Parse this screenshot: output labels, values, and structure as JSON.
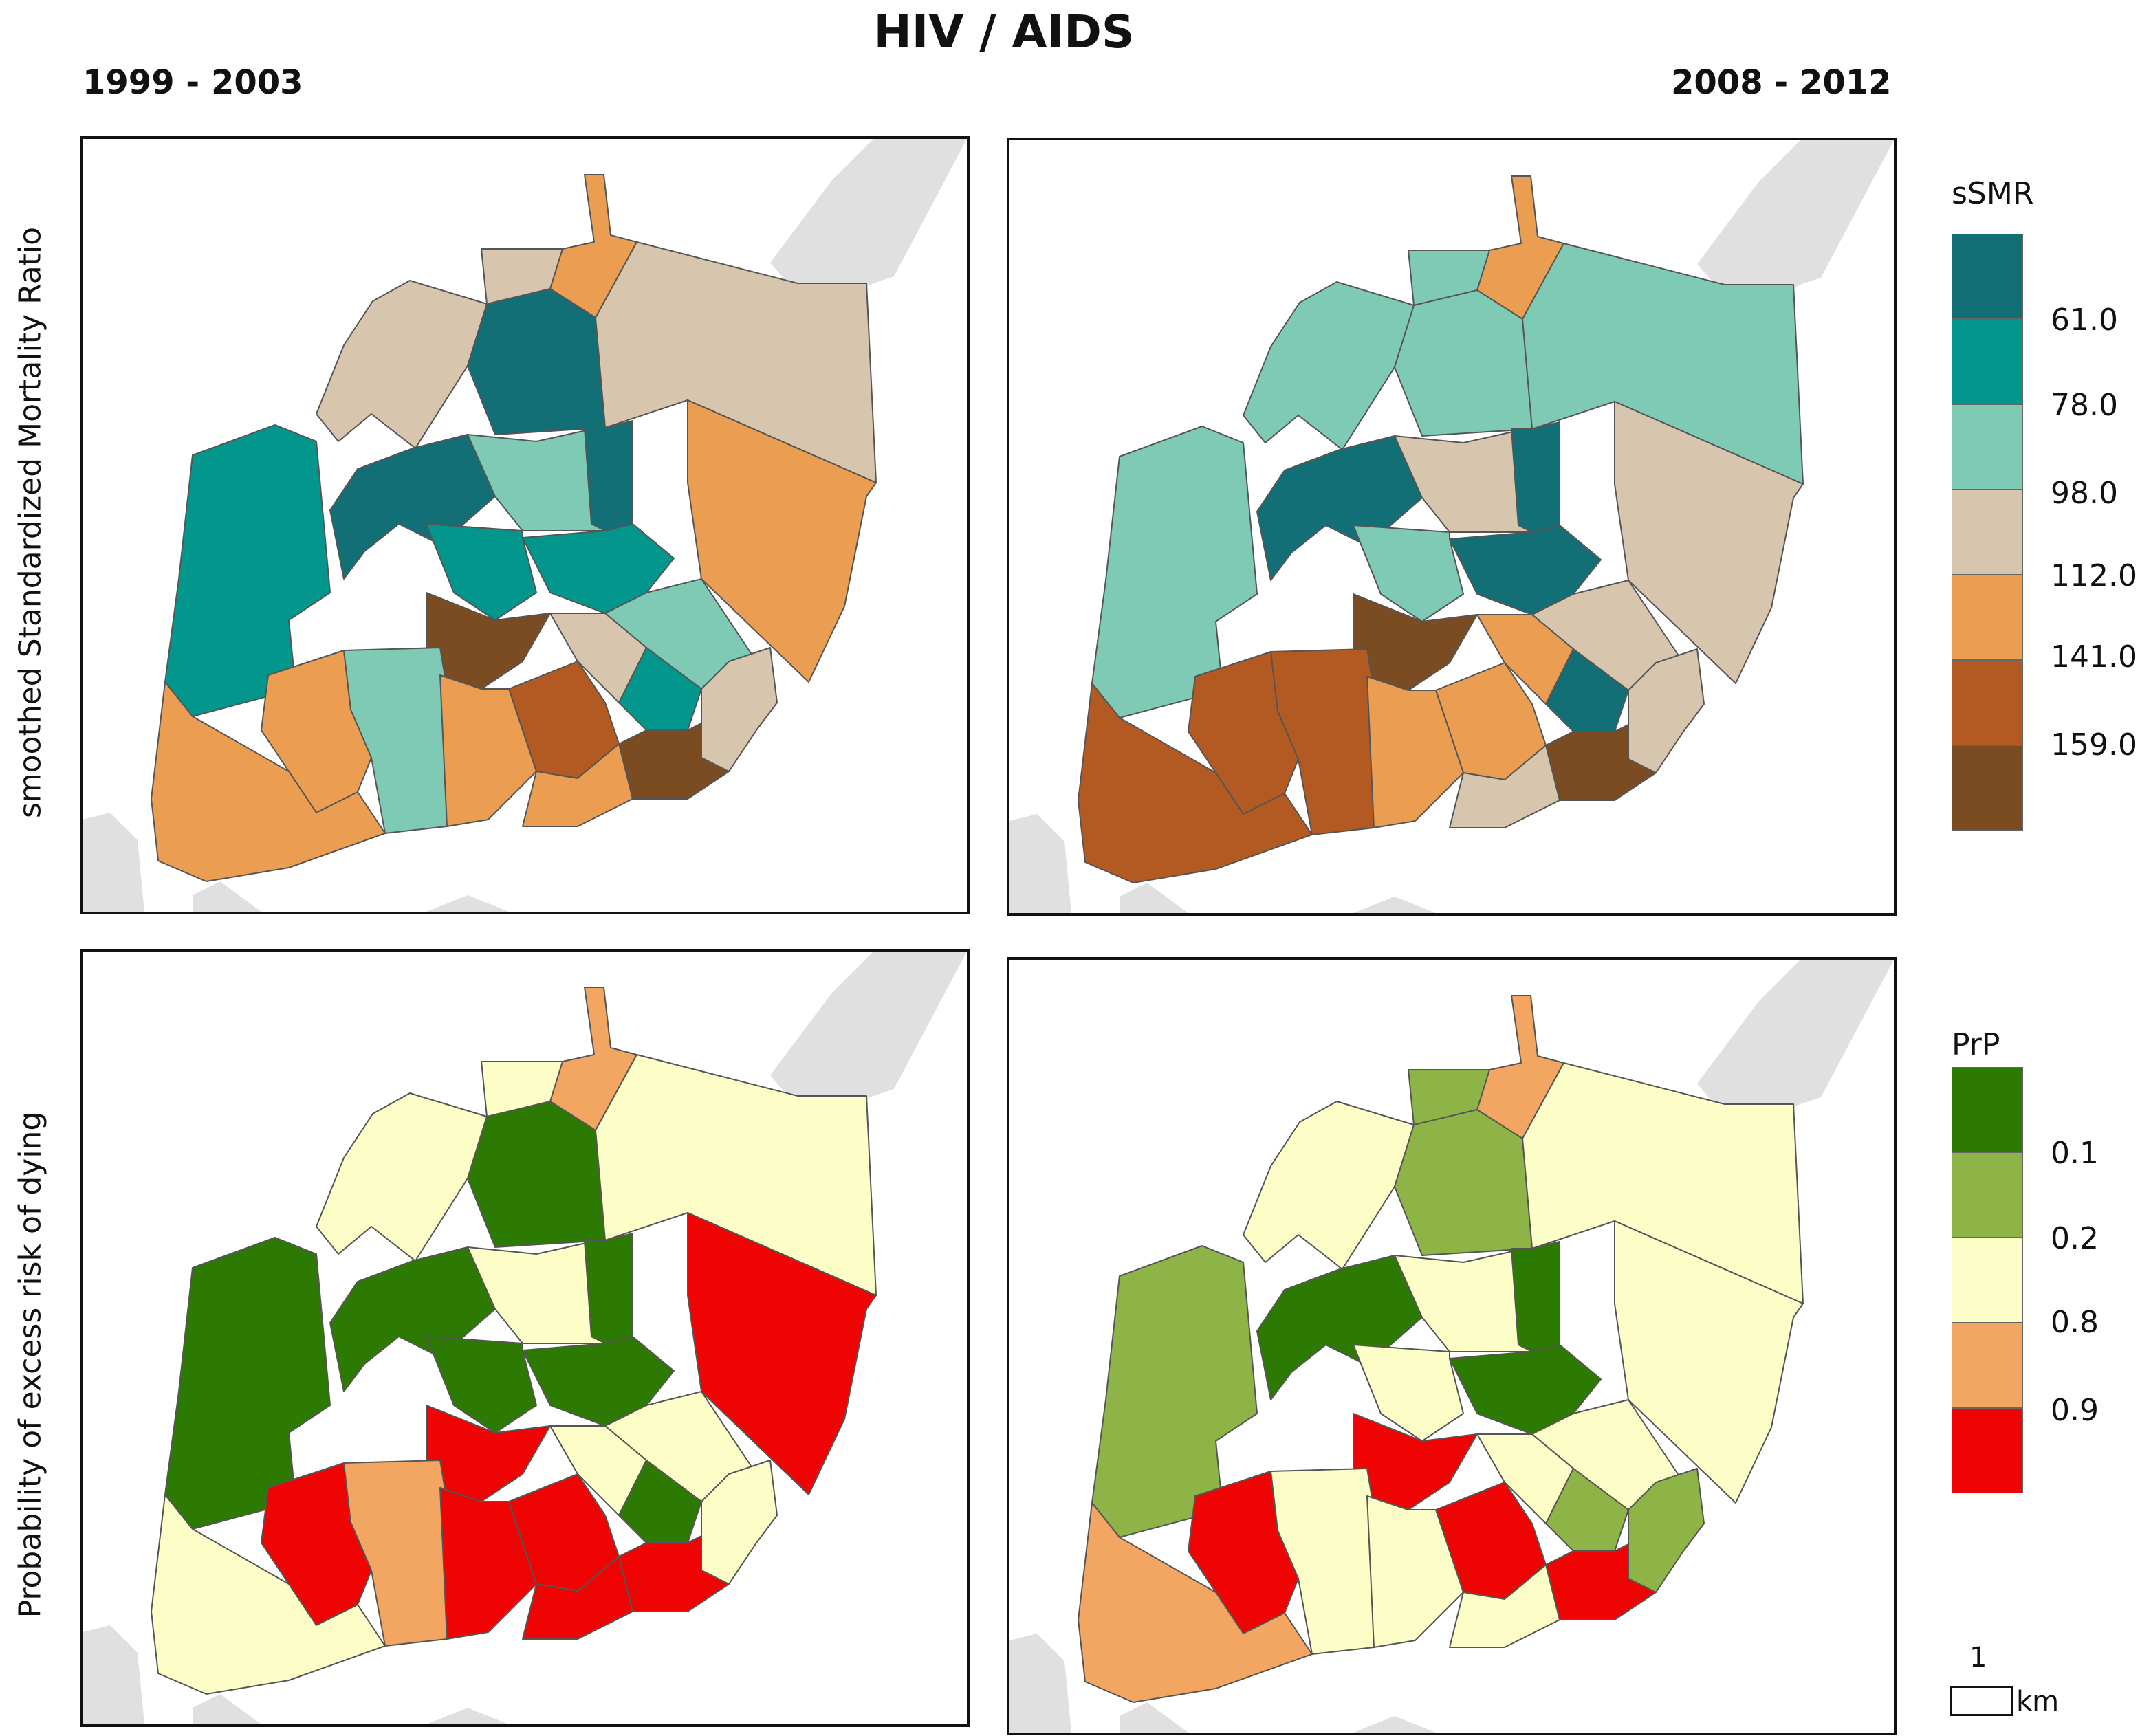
{
  "title": "HIV / AIDS",
  "periods": {
    "left": "1999 - 2003",
    "right": "2008 - 2012"
  },
  "row_labels": {
    "top": "smoothed Standardized Mortality Ratio",
    "bottom": "Probability of excess risk of dying"
  },
  "legend_ssmr": {
    "title": "sSMR",
    "colors": [
      "#136f76",
      "#02968c",
      "#7fcab5",
      "#d7c5ae",
      "#eb9e52",
      "#b35a22",
      "#7b4b22"
    ],
    "ticks": [
      "61.0",
      "78.0",
      "98.0",
      "112.0",
      "141.0",
      "159.0"
    ]
  },
  "legend_prp": {
    "title": "PrP",
    "colors": [
      "#2d7a03",
      "#8eb447",
      "#fdfdc8",
      "#f3a562",
      "#ef0303"
    ],
    "ticks": [
      "0.1",
      "0.2",
      "0.8",
      "0.9"
    ]
  },
  "scale_bar": {
    "value": "1",
    "unit": "km"
  },
  "colors": {
    "land": "#e0e0e0",
    "district_border": "#555555"
  }
}
